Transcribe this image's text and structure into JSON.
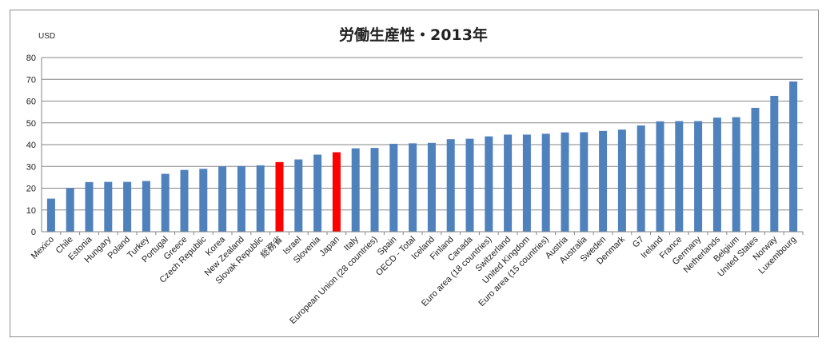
{
  "colors": {
    "bar": "#4f81bd",
    "highlight": "#ff0000",
    "grid": "#868686",
    "axis": "#868686"
  },
  "chart_data": {
    "type": "bar",
    "title": "労働生産性・2013年",
    "ylabel": "USD",
    "xlabel": "",
    "ylim": [
      0,
      80
    ],
    "yticks": [
      0,
      10,
      20,
      30,
      40,
      50,
      60,
      70,
      80
    ],
    "grid": true,
    "legend": "none",
    "categories": [
      "Mexico",
      "Chile",
      "Estonia",
      "Hungary",
      "Poland",
      "Turkey",
      "Portugal",
      "Greece",
      "Czech Republic",
      "Korea",
      "New Zealand",
      "Slovak Republic",
      "総務省",
      "Israel",
      "Slovenia",
      "Japan",
      "Italy",
      "European Union (28 countries)",
      "Spain",
      "OECD - Total",
      "Iceland",
      "Finland",
      "Canada",
      "Euro area (18 countries)",
      "Switzerland",
      "United Kingdom",
      "Euro area (15 countries)",
      "Austria",
      "Australia",
      "Sweden",
      "Denmark",
      "G7",
      "Ireland",
      "France",
      "Germany",
      "Netherlands",
      "Belgium",
      "United States",
      "Norway",
      "Luxembourg"
    ],
    "values": [
      15.2,
      20.0,
      22.8,
      22.9,
      22.9,
      23.3,
      26.6,
      28.4,
      28.9,
      30.0,
      30.2,
      30.5,
      32.0,
      33.2,
      35.4,
      36.5,
      38.3,
      38.5,
      40.4,
      40.6,
      40.8,
      42.5,
      42.7,
      43.8,
      44.6,
      44.6,
      45.0,
      45.6,
      45.7,
      46.3,
      46.9,
      48.8,
      50.7,
      50.8,
      50.8,
      52.4,
      52.6,
      56.9,
      62.4,
      69.0
    ],
    "highlighted": [
      "総務省",
      "Japan"
    ]
  }
}
